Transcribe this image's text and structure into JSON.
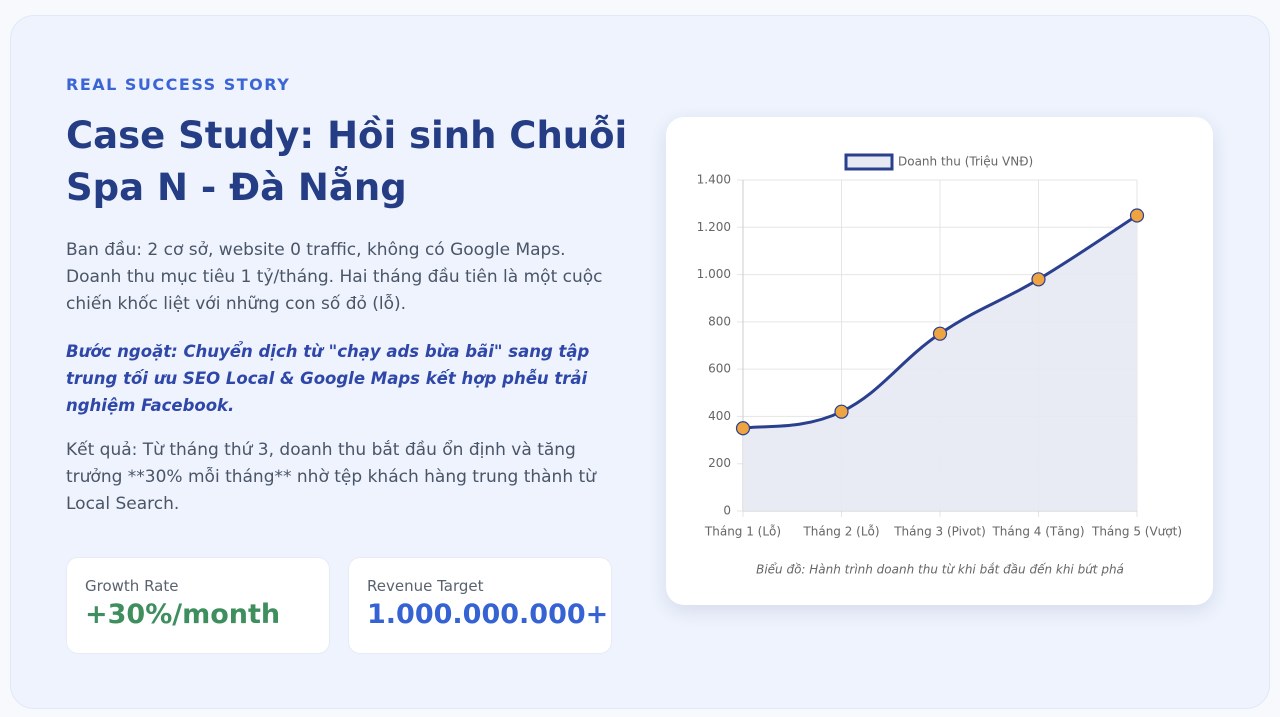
{
  "header": {
    "eyebrow": "REAL SUCCESS STORY",
    "title": "Case Study: Hồi sinh Chuỗi Spa N - Đà Nẵng"
  },
  "paragraphs": [
    "Ban đầu: 2 cơ sở, website 0 traffic, không có Google Maps. Doanh thu mục tiêu 1 tỷ/tháng. Hai tháng đầu tiên là một cuộc chiến khốc liệt với những con số đỏ (lỗ).",
    "Bước ngoặt: Chuyển dịch từ \"chạy ads bừa bãi\" sang tập trung tối ưu SEO Local & Google Maps kết hợp phễu trải nghiệm Facebook.",
    "Kết quả: Từ tháng thứ 3, doanh thu bắt đầu ổn định và tăng trưởng **30% mỗi tháng** nhờ tệp khách hàng trung thành từ Local Search."
  ],
  "stats": [
    {
      "label": "Growth Rate",
      "value": "+30%/month"
    },
    {
      "label": "Revenue Target",
      "value": "1.000.000.000+"
    }
  ],
  "chart_data": {
    "type": "line",
    "categories": [
      "Tháng 1 (Lỗ)",
      "Tháng 2 (Lỗ)",
      "Tháng 3 (Pivot)",
      "Tháng 4 (Tăng)",
      "Tháng 5 (Vượt)"
    ],
    "series": [
      {
        "name": "Doanh thu (Triệu VNĐ)",
        "color": "#2b3f8f",
        "fill": "#e6e9f2",
        "point_color": "#eea441",
        "values": [
          350,
          420,
          750,
          980,
          1250
        ]
      }
    ],
    "ylim": [
      0,
      1400
    ],
    "yticks": [
      0,
      200,
      400,
      600,
      800,
      {
        "value": 1000,
        "label": "1.000"
      },
      {
        "value": 1200,
        "label": "1.200"
      },
      {
        "value": 1400,
        "label": "1.400"
      }
    ],
    "grid": true,
    "legend": "top",
    "caption": "Biểu đồ: Hành trình doanh thu từ khi bắt đầu đến khi bứt phá"
  }
}
